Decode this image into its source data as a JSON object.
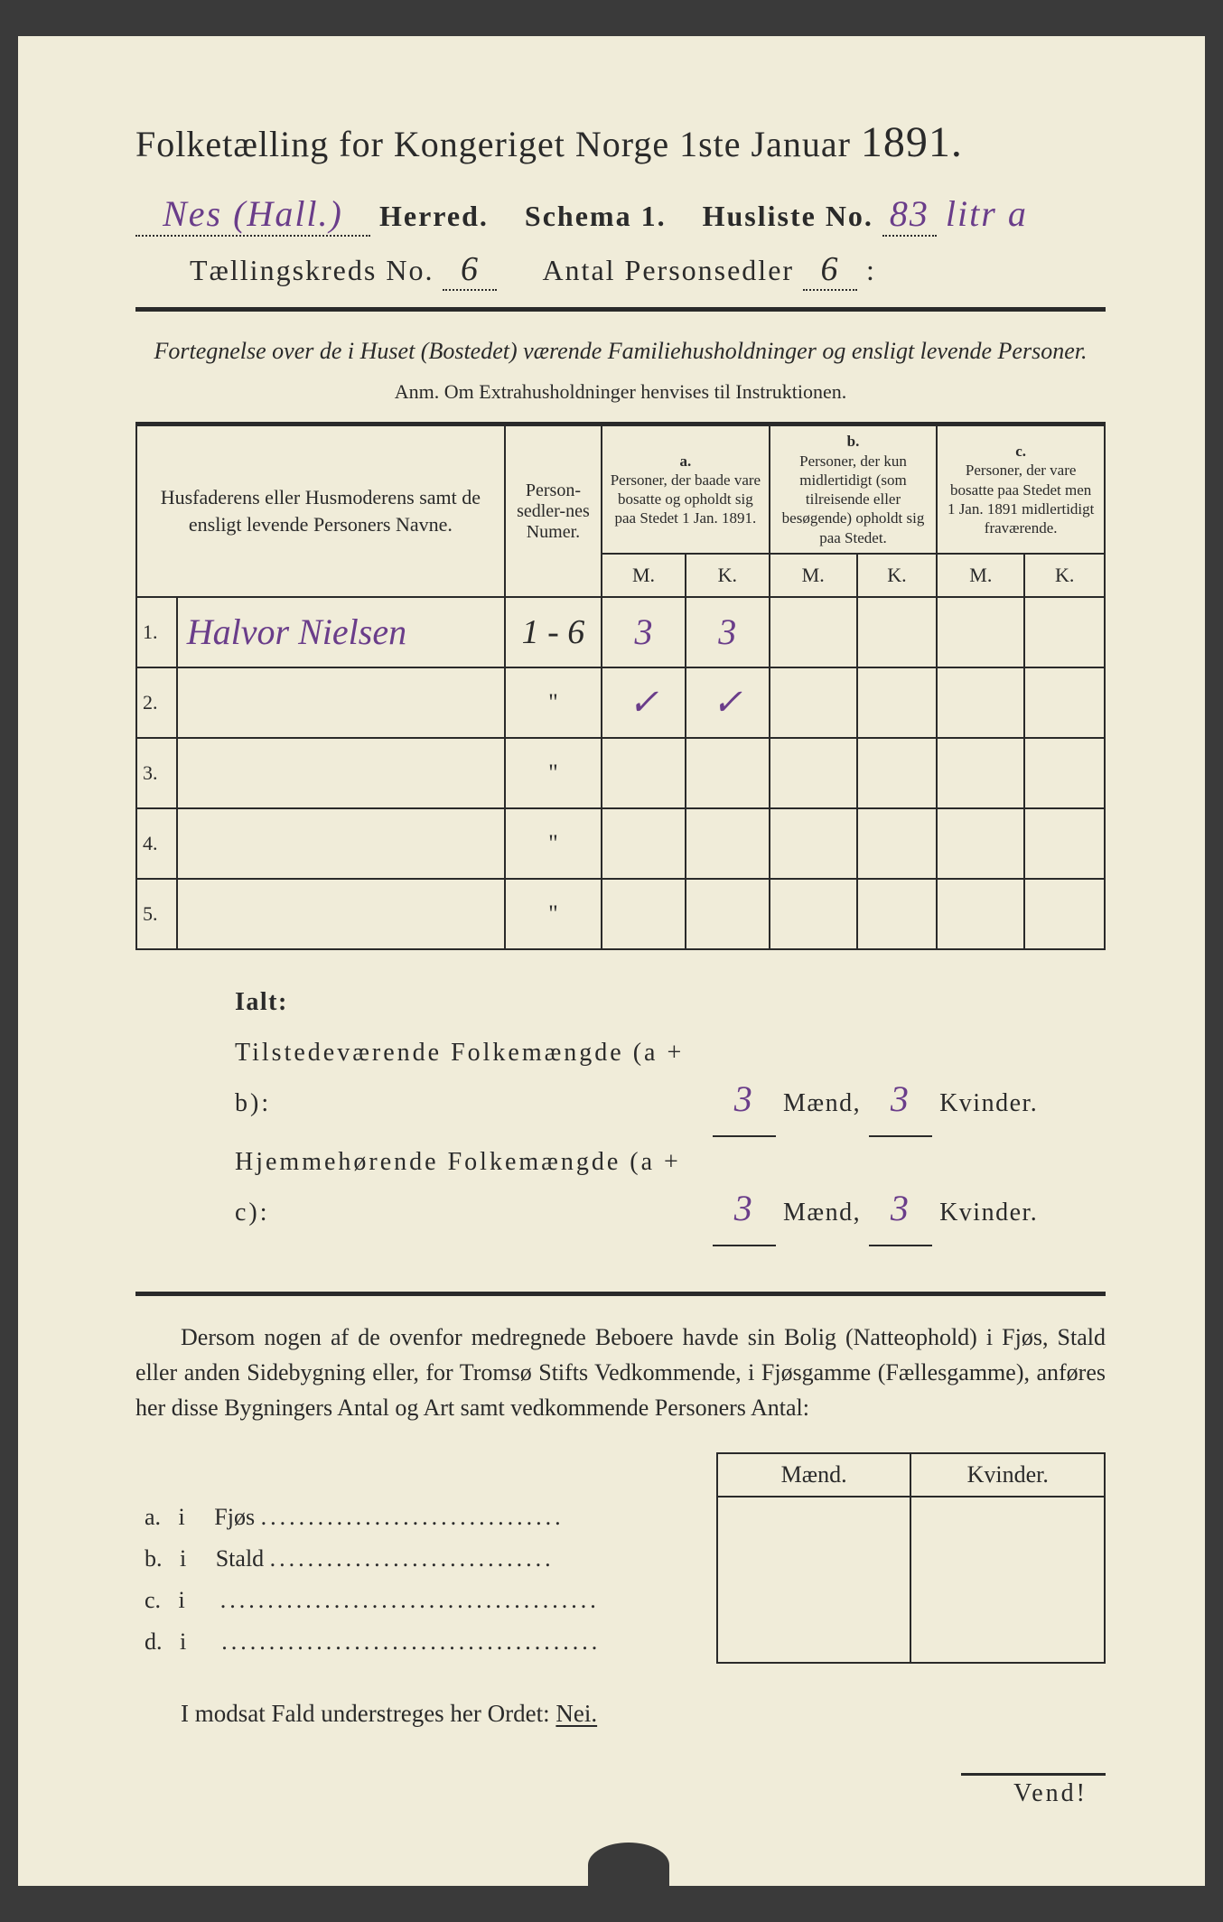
{
  "colors": {
    "paper": "#f0ecd9",
    "ink": "#2a2a2a",
    "handwriting": "#6a3d8a",
    "background": "#3a3a3a"
  },
  "title": {
    "text": "Folketælling for Kongeriget Norge 1ste Januar",
    "year": "1891."
  },
  "header": {
    "herred_hw": "Nes (Hall.)",
    "herred_label": "Herred.",
    "schema_label": "Schema 1.",
    "husliste_label": "Husliste No.",
    "husliste_hw": "83",
    "husliste_suffix_hw": "litr a",
    "kreds_label": "Tællingskreds No.",
    "kreds_hw": "6",
    "antal_label": "Antal Personsedler",
    "antal_hw": "6",
    "antal_suffix": ":"
  },
  "subtitle": "Fortegnelse over de i Huset (Bostedet) værende Familiehusholdninger og ensligt levende Personer.",
  "anm": "Anm. Om Extrahusholdninger henvises til Instruktionen.",
  "table": {
    "col_names": "Husfaderens eller Husmoderens samt de ensligt levende Personers Navne.",
    "col_numer": "Person-sedler-nes Numer.",
    "col_a_head": "a.",
    "col_a": "Personer, der baade vare bosatte og opholdt sig paa Stedet 1 Jan. 1891.",
    "col_b_head": "b.",
    "col_b": "Personer, der kun midlertidigt (som tilreisende eller besøgende) opholdt sig paa Stedet.",
    "col_c_head": "c.",
    "col_c": "Personer, der vare bosatte paa Stedet men 1 Jan. 1891 midlertidigt fraværende.",
    "mk_m": "M.",
    "mk_k": "K.",
    "rows": [
      {
        "n": "1.",
        "name_hw": "Halvor Nielsen",
        "numer": "1 - 6",
        "a_m": "3",
        "a_k": "3",
        "b_m": "",
        "b_k": "",
        "c_m": "",
        "c_k": ""
      },
      {
        "n": "2.",
        "name_hw": "",
        "numer": "\"",
        "a_m": "✓",
        "a_k": "✓",
        "b_m": "",
        "b_k": "",
        "c_m": "",
        "c_k": ""
      },
      {
        "n": "3.",
        "name_hw": "",
        "numer": "\"",
        "a_m": "",
        "a_k": "",
        "b_m": "",
        "b_k": "",
        "c_m": "",
        "c_k": ""
      },
      {
        "n": "4.",
        "name_hw": "",
        "numer": "\"",
        "a_m": "",
        "a_k": "",
        "b_m": "",
        "b_k": "",
        "c_m": "",
        "c_k": ""
      },
      {
        "n": "5.",
        "name_hw": "",
        "numer": "\"",
        "a_m": "",
        "a_k": "",
        "b_m": "",
        "b_k": "",
        "c_m": "",
        "c_k": ""
      }
    ]
  },
  "ialt": {
    "heading": "Ialt:",
    "line1_label": "Tilstedeværende Folkemængde (a + b):",
    "line2_label": "Hjemmehørende Folkemængde (a + c):",
    "maend": "Mænd,",
    "kvinder": "Kvinder.",
    "l1_m": "3",
    "l1_k": "3",
    "l2_m": "3",
    "l2_k": "3"
  },
  "para": "Dersom nogen af de ovenfor medregnede Beboere havde sin Bolig (Natteophold) i Fjøs, Stald eller anden Sidebygning eller, for Tromsø Stifts Vedkommende, i Fjøsgamme (Fællesgamme), anføres her disse Bygningers Antal og Art samt vedkommende Personers Antal:",
  "bottom": {
    "m": "Mænd.",
    "k": "Kvinder.",
    "rows": [
      {
        "l": "a.",
        "i": "i",
        "name": "Fjøs"
      },
      {
        "l": "b.",
        "i": "i",
        "name": "Stald"
      },
      {
        "l": "c.",
        "i": "i",
        "name": ""
      },
      {
        "l": "d.",
        "i": "i",
        "name": ""
      }
    ]
  },
  "nei": {
    "pre": "I modsat Fald understreges her Ordet:",
    "word": "Nei."
  },
  "vend": "Vend!"
}
